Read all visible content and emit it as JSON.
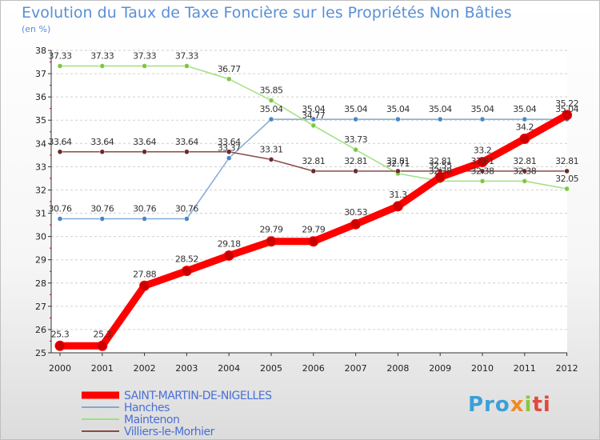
{
  "title": "Evolution du Taux de Taxe Foncière sur les Propriétés Non Bâties",
  "unit": "(en %)",
  "logo": [
    "Pro",
    "x",
    "i",
    "ti"
  ],
  "chart_data": {
    "type": "line",
    "title": "Evolution du Taux de Taxe Foncière sur les Propriétés Non Bâties",
    "ylabel": "(en %)",
    "xlabel": "",
    "ylim": [
      25,
      38
    ],
    "yticks": [
      25,
      26,
      27,
      28,
      29,
      30,
      31,
      32,
      33,
      34,
      35,
      36,
      37,
      38
    ],
    "categories": [
      "2000",
      "2001",
      "2002",
      "2003",
      "2004",
      "2005",
      "2006",
      "2007",
      "2008",
      "2009",
      "2010",
      "2011",
      "2012"
    ],
    "series": [
      {
        "name": "SAINT-MARTIN-DE-NIGELLES",
        "color": "#ff0000",
        "marker": "#cc0000",
        "values": [
          25.3,
          25.3,
          27.88,
          28.52,
          29.18,
          29.79,
          29.79,
          30.53,
          31.3,
          32.55,
          33.2,
          34.2,
          35.22
        ],
        "labels": [
          "25.3",
          "25.3",
          "27.88",
          "28.52",
          "29.18",
          "29.79",
          "29.79",
          "30.53",
          "31.3",
          "32.55",
          "33.2",
          "34.2",
          "35.22"
        ]
      },
      {
        "name": "Hanches",
        "color": "#7fa9d4",
        "marker": "#4a86c6",
        "values": [
          30.76,
          30.76,
          30.76,
          30.76,
          33.37,
          35.04,
          35.04,
          35.04,
          35.04,
          35.04,
          35.04,
          35.04,
          35.04
        ],
        "labels": [
          "30.76",
          "30.76",
          "30.76",
          "30.76",
          "33.37",
          "35.04",
          "35.04",
          "35.04",
          "35.04",
          "35.04",
          "35.04",
          "35.04",
          "35.04"
        ]
      },
      {
        "name": "Maintenon",
        "color": "#9fe07f",
        "marker": "#7ac943",
        "values": [
          37.33,
          37.33,
          37.33,
          37.33,
          36.77,
          35.85,
          34.77,
          33.73,
          32.71,
          32.38,
          32.38,
          32.38,
          32.05
        ],
        "labels": [
          "37.33",
          "37.33",
          "37.33",
          "37.33",
          "36.77",
          "35.85",
          "34.77",
          "33.73",
          "32.71",
          "32.38",
          "32.38",
          "32.38",
          "32.05"
        ]
      },
      {
        "name": "Villiers-le-Morhier",
        "color": "#8a4a4a",
        "marker": "#6b2a2a",
        "values": [
          33.64,
          33.64,
          33.64,
          33.64,
          33.64,
          33.31,
          32.81,
          32.81,
          32.81,
          32.81,
          32.81,
          32.81,
          32.81
        ],
        "labels": [
          "33.64",
          "33.64",
          "33.64",
          "33.64",
          "33.64",
          "33.31",
          "32.81",
          "32.81",
          "32.81",
          "32.81",
          "32.81",
          "32.81",
          "32.81"
        ]
      }
    ]
  }
}
